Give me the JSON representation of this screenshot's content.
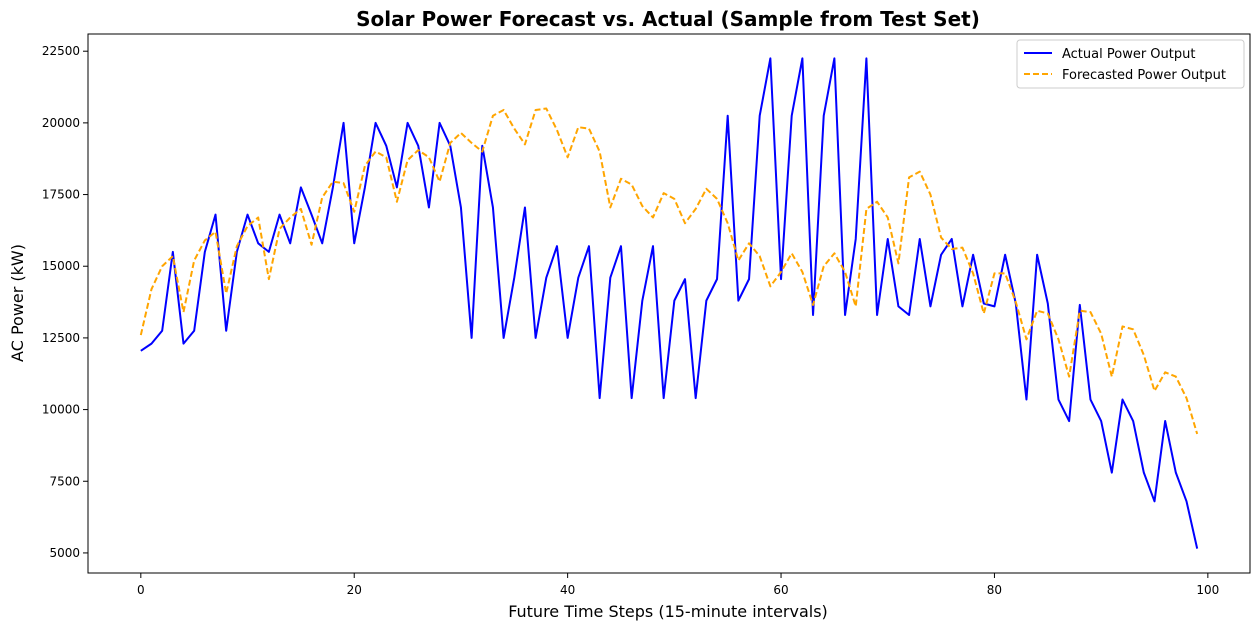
{
  "chart_data": {
    "type": "line",
    "title": "Solar Power Forecast vs. Actual (Sample from Test Set)",
    "xlabel": "Future Time Steps (15-minute intervals)",
    "ylabel": "AC Power (kW)",
    "xlim": [
      -4.95,
      103.95
    ],
    "ylim": [
      4300,
      23100
    ],
    "xticks": [
      0,
      20,
      40,
      60,
      80,
      100
    ],
    "yticks": [
      5000,
      7500,
      10000,
      12500,
      15000,
      17500,
      20000,
      22500
    ],
    "grid": false,
    "legend_position": "top-right",
    "series": [
      {
        "name": "Actual Power Output",
        "color": "#0000ff",
        "style": "solid",
        "x": [
          0,
          1,
          2,
          3,
          4,
          5,
          6,
          7,
          8,
          9,
          10,
          11,
          12,
          13,
          14,
          15,
          16,
          17,
          18,
          19,
          20,
          21,
          22,
          23,
          24,
          25,
          26,
          27,
          28,
          29,
          30,
          31,
          32,
          33,
          34,
          35,
          36,
          37,
          38,
          39,
          40,
          41,
          42,
          43,
          44,
          45,
          46,
          47,
          48,
          49,
          50,
          51,
          52,
          53,
          54,
          55,
          56,
          57,
          58,
          59,
          60,
          61,
          62,
          63,
          64,
          65,
          66,
          67,
          68,
          69,
          70,
          71,
          72,
          73,
          74,
          75,
          76,
          77,
          78,
          79,
          80,
          81,
          82,
          83,
          84,
          85,
          86,
          87,
          88,
          89,
          90,
          91,
          92,
          93,
          94,
          95,
          96,
          97,
          98,
          99
        ],
        "values": [
          12050,
          12300,
          12750,
          15500,
          12300,
          12750,
          15500,
          16800,
          12750,
          15500,
          16800,
          15800,
          15500,
          16800,
          15800,
          17750,
          16800,
          15800,
          17750,
          20000,
          15800,
          17750,
          20000,
          19200,
          17750,
          20000,
          19200,
          17050,
          20000,
          19200,
          17050,
          12500,
          19200,
          17050,
          12500,
          14600,
          17050,
          12500,
          14600,
          15700,
          12500,
          14600,
          15700,
          10400,
          14600,
          15700,
          10400,
          13800,
          15700,
          10400,
          13800,
          14550,
          10400,
          13800,
          14550,
          20250,
          13800,
          14550,
          20250,
          22250,
          14550,
          20250,
          22250,
          13300,
          20250,
          22250,
          13300,
          15950,
          22250,
          13300,
          15950,
          13600,
          13300,
          15950,
          13600,
          15400,
          15950,
          13600,
          15400,
          13700,
          13600,
          15400,
          13700,
          10350,
          15400,
          13700,
          10350,
          9600,
          13650,
          10350,
          9600,
          7800,
          10350,
          9600,
          7800,
          6800,
          9600,
          7800,
          6800,
          5150
        ]
      },
      {
        "name": "Forecasted Power Output",
        "color": "#ffa500",
        "style": "dashed",
        "x": [
          0,
          1,
          2,
          3,
          4,
          5,
          6,
          7,
          8,
          9,
          10,
          11,
          12,
          13,
          14,
          15,
          16,
          17,
          18,
          19,
          20,
          21,
          22,
          23,
          24,
          25,
          26,
          27,
          28,
          29,
          30,
          31,
          32,
          33,
          34,
          35,
          36,
          37,
          38,
          39,
          40,
          41,
          42,
          43,
          44,
          45,
          46,
          47,
          48,
          49,
          50,
          51,
          52,
          53,
          54,
          55,
          56,
          57,
          58,
          59,
          60,
          61,
          62,
          63,
          64,
          65,
          66,
          67,
          68,
          69,
          70,
          71,
          72,
          73,
          74,
          75,
          76,
          77,
          78,
          79,
          80,
          81,
          82,
          83,
          84,
          85,
          86,
          87,
          88,
          89,
          90,
          91,
          92,
          93,
          94,
          95,
          96,
          97,
          98,
          99
        ],
        "values": [
          12600,
          14200,
          15000,
          15350,
          13400,
          15200,
          15900,
          16200,
          14050,
          15700,
          16400,
          16700,
          14550,
          16300,
          16700,
          17000,
          15750,
          17400,
          17950,
          17900,
          16900,
          18500,
          19000,
          18800,
          17250,
          18700,
          19050,
          18800,
          17950,
          19300,
          19650,
          19300,
          19000,
          20250,
          20450,
          19800,
          19250,
          20450,
          20500,
          19750,
          18800,
          19850,
          19800,
          19000,
          17050,
          18050,
          17850,
          17100,
          16700,
          17550,
          17350,
          16500,
          17000,
          17700,
          17350,
          16500,
          15200,
          15800,
          15350,
          14300,
          14800,
          15450,
          14800,
          13650,
          15000,
          15450,
          14800,
          13600,
          17000,
          17250,
          16700,
          15100,
          18100,
          18300,
          17500,
          16000,
          15600,
          15650,
          14750,
          13350,
          14750,
          14750,
          13750,
          12450,
          13450,
          13350,
          12450,
          11150,
          13450,
          13400,
          12650,
          11150,
          12900,
          12800,
          11900,
          10650,
          11300,
          11150,
          10400,
          9150
        ]
      }
    ]
  }
}
